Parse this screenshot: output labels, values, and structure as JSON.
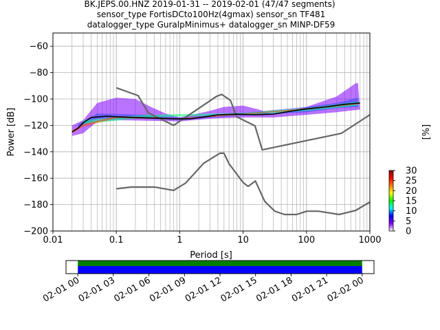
{
  "title": {
    "line1": "BK.JEPS.00.HNZ   2019-01-31 -- 2019-02-01  (47/47 segments)",
    "line2": "sensor_type FortisDCto100Hz(4gmax) sensor_sn TF481",
    "line3": "datalogger_type GuralpMinimus+ datalogger_sn MINP-DF59"
  },
  "chart_data": [
    {
      "type": "heatmap",
      "xlabel": "Period [s]",
      "ylabel": "Power [dB]",
      "x_scale": "log",
      "xlim": [
        0.01,
        1000
      ],
      "ylim": [
        -200,
        -50
      ],
      "x_ticks": [
        {
          "value": 0.01,
          "label": "0.01"
        },
        {
          "value": 0.1,
          "label": "0.1"
        },
        {
          "value": 1,
          "label": "1"
        },
        {
          "value": 10,
          "label": "10"
        },
        {
          "value": 100,
          "label": "100"
        },
        {
          "value": 1000,
          "label": "1000"
        }
      ],
      "y_ticks": [
        {
          "value": -60,
          "label": "−60"
        },
        {
          "value": -80,
          "label": "−80"
        },
        {
          "value": -100,
          "label": "−100"
        },
        {
          "value": -120,
          "label": "−120"
        },
        {
          "value": -140,
          "label": "−140"
        },
        {
          "value": -160,
          "label": "−160"
        },
        {
          "value": -180,
          "label": "−180"
        },
        {
          "value": -200,
          "label": "−200"
        }
      ],
      "grid": true,
      "noise_model_color": "#666666",
      "noise_models": [
        {
          "points": [
            [
              0.1,
              -91.5
            ],
            [
              0.22,
              -97.4
            ],
            [
              0.32,
              -110.5
            ],
            [
              0.8,
              -120
            ],
            [
              3.8,
              -98
            ],
            [
              4.6,
              -96.5
            ],
            [
              6.3,
              -101
            ],
            [
              7.9,
              -113.5
            ],
            [
              15.4,
              -120.3
            ],
            [
              20,
              -138.5
            ],
            [
              354.8,
              -126
            ],
            [
              1000,
              -112
            ]
          ]
        },
        {
          "points": [
            [
              0.1,
              -168
            ],
            [
              0.17,
              -166.7
            ],
            [
              0.4,
              -166.7
            ],
            [
              0.8,
              -169.2
            ],
            [
              1.24,
              -163.7
            ],
            [
              2.4,
              -148.6
            ],
            [
              4.3,
              -141.1
            ],
            [
              5,
              -141.1
            ],
            [
              6,
              -149
            ],
            [
              10,
              -163.3
            ],
            [
              12,
              -166.2
            ],
            [
              15.6,
              -162.1
            ],
            [
              21.9,
              -177.5
            ],
            [
              31.6,
              -185
            ],
            [
              45,
              -187.5
            ],
            [
              70,
              -187.5
            ],
            [
              101,
              -185
            ],
            [
              154,
              -185
            ],
            [
              328,
              -187.5
            ],
            [
              600,
              -184.4
            ],
            [
              1000,
              -178
            ]
          ]
        }
      ],
      "median_color": "#000000",
      "median": [
        [
          0.02,
          -125
        ],
        [
          0.025,
          -122
        ],
        [
          0.03,
          -118
        ],
        [
          0.04,
          -114
        ],
        [
          0.07,
          -113
        ],
        [
          0.1,
          -113.5
        ],
        [
          0.2,
          -114
        ],
        [
          0.4,
          -114.5
        ],
        [
          0.8,
          -115
        ],
        [
          1.5,
          -115
        ],
        [
          2.5,
          -113.5
        ],
        [
          4,
          -112
        ],
        [
          8,
          -111.5
        ],
        [
          15,
          -112
        ],
        [
          30,
          -111.5
        ],
        [
          60,
          -109
        ],
        [
          100,
          -107.5
        ],
        [
          200,
          -106
        ],
        [
          400,
          -104
        ],
        [
          700,
          -103
        ]
      ],
      "density_bands": [
        {
          "color": "#7f00ff",
          "from": [
            [
              0.02,
              -128
            ],
            [
              0.03,
              -126
            ],
            [
              0.05,
              -117
            ],
            [
              0.1,
              -116
            ],
            [
              1,
              -117
            ],
            [
              3,
              -115
            ],
            [
              10,
              -114
            ],
            [
              30,
              -114
            ],
            [
              100,
              -112
            ],
            [
              300,
              -110
            ],
            [
              700,
              -108
            ]
          ],
          "to": [
            [
              0.02,
              -120
            ],
            [
              0.03,
              -116
            ],
            [
              0.05,
              -103
            ],
            [
              0.1,
              -99
            ],
            [
              0.2,
              -100
            ],
            [
              0.35,
              -106
            ],
            [
              0.6,
              -111
            ],
            [
              1,
              -114
            ],
            [
              3,
              -109
            ],
            [
              5,
              -106
            ],
            [
              10,
              -105
            ],
            [
              18,
              -108
            ],
            [
              30,
              -112
            ],
            [
              100,
              -106
            ],
            [
              300,
              -98
            ],
            [
              600,
              -88
            ],
            [
              650,
              -88
            ]
          ]
        },
        {
          "color": "#2f4fff",
          "from": [
            [
              0.025,
              -122
            ],
            [
              0.05,
              -115
            ],
            [
              0.3,
              -115
            ],
            [
              1,
              -116
            ],
            [
              10,
              -112.5
            ],
            [
              100,
              -110
            ],
            [
              300,
              -107
            ],
            [
              650,
              -106
            ]
          ],
          "to": [
            [
              0.025,
              -119
            ],
            [
              0.05,
              -111
            ],
            [
              0.3,
              -112
            ],
            [
              1,
              -114
            ],
            [
              10,
              -110.5
            ],
            [
              100,
              -106
            ],
            [
              300,
              -103
            ],
            [
              650,
              -99
            ]
          ]
        },
        {
          "color": "#00ff7f",
          "from": [
            [
              0.03,
              -119
            ],
            [
              0.3,
              -114
            ],
            [
              10,
              -112
            ],
            [
              100,
              -109
            ],
            [
              650,
              -105
            ]
          ],
          "to": [
            [
              0.03,
              -116
            ],
            [
              0.3,
              -112
            ],
            [
              10,
              -110.5
            ],
            [
              100,
              -107
            ],
            [
              650,
              -102
            ]
          ]
        },
        {
          "color": "#ff4f00",
          "from": [
            [
              0.02,
              -126
            ],
            [
              0.03,
              -121
            ],
            [
              0.1,
              -114.5
            ],
            [
              1,
              -115.5
            ],
            [
              10,
              -112
            ],
            [
              100,
              -108
            ],
            [
              650,
              -104
            ]
          ],
          "to": [
            [
              0.02,
              -124
            ],
            [
              0.03,
              -119
            ],
            [
              0.1,
              -113
            ],
            [
              1,
              -114.5
            ],
            [
              10,
              -111
            ],
            [
              100,
              -107
            ],
            [
              650,
              -103
            ]
          ]
        }
      ],
      "colorbar": {
        "label": "[%]",
        "range": [
          0,
          30
        ],
        "ticks": [
          {
            "value": 0,
            "label": "0"
          },
          {
            "value": 5,
            "label": "5"
          },
          {
            "value": 10,
            "label": "10"
          },
          {
            "value": 15,
            "label": "15"
          },
          {
            "value": 20,
            "label": "20"
          },
          {
            "value": 25,
            "label": "25"
          },
          {
            "value": 30,
            "label": "30"
          }
        ],
        "stops": [
          "#ffffff",
          "#7f00ff",
          "#0000ff",
          "#00ffff",
          "#00ff00",
          "#ffff00",
          "#ff7f00",
          "#ff0000",
          "#7f0000"
        ]
      }
    },
    {
      "type": "timeline",
      "xlim": [
        "2019-01-31 23:00",
        "2019-02-02 01:00"
      ],
      "ticks": [
        {
          "value": "2019-02-01 00:00",
          "label": "02-01 00"
        },
        {
          "value": "2019-02-01 03:00",
          "label": "02-01 03"
        },
        {
          "value": "2019-02-01 06:00",
          "label": "02-01 06"
        },
        {
          "value": "2019-02-01 09:00",
          "label": "02-01 09"
        },
        {
          "value": "2019-02-01 12:00",
          "label": "02-01 12"
        },
        {
          "value": "2019-02-01 15:00",
          "label": "02-01 15"
        },
        {
          "value": "2019-02-01 18:00",
          "label": "02-01 18"
        },
        {
          "value": "2019-02-01 21:00",
          "label": "02-01 21"
        },
        {
          "value": "2019-02-02 00:00",
          "label": "02-02 00"
        }
      ],
      "bars": [
        {
          "from": "2019-02-01 00:00",
          "to": "2019-02-02 00:00",
          "color": "#008000"
        },
        {
          "from": "2019-02-01 00:00",
          "to": "2019-02-02 00:00",
          "color": "#0000ff"
        }
      ]
    }
  ]
}
